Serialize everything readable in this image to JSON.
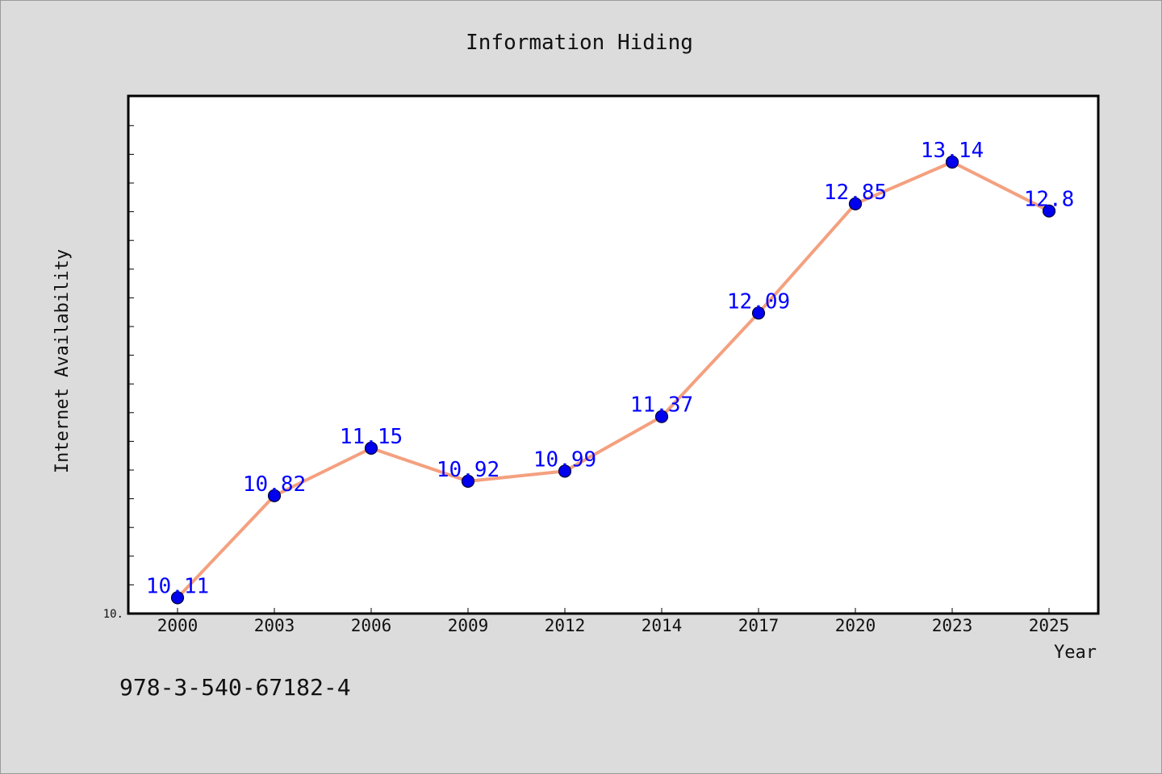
{
  "footer": {
    "isbn": "978-3-540-67182-4"
  },
  "chart_data": {
    "type": "line",
    "title": "Information Hiding",
    "xlabel": "Year",
    "ylabel": "Internet Availability",
    "categories": [
      "2000",
      "2003",
      "2006",
      "2009",
      "2012",
      "2014",
      "2017",
      "2020",
      "2023",
      "2025"
    ],
    "series": [
      {
        "values": [
          10.11,
          10.82,
          11.15,
          10.92,
          10.99,
          11.37,
          12.09,
          12.85,
          13.14,
          12.8
        ],
        "labels": [
          "10.11",
          "10.82",
          "11.15",
          "10.92",
          "10.99",
          "11.37",
          "12.09",
          "12.85",
          "13.14",
          "12.8"
        ]
      }
    ],
    "ylim": [
      10.0,
      13.6
    ],
    "ytick_labels": [
      "10."
    ],
    "grid": false,
    "colors": {
      "line": "#f4a07f",
      "marker": "#0000ee",
      "marker_edge": "#000033",
      "label": "#0000ff",
      "plot_bg": "#ffffff",
      "figure_bg": "#dcdcdc"
    }
  }
}
